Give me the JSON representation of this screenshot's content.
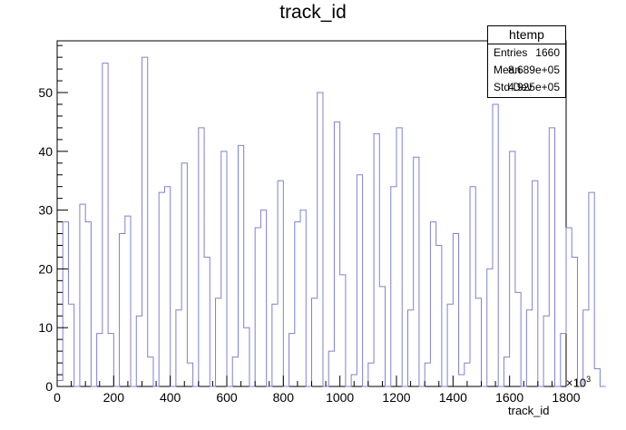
{
  "chart_data": {
    "type": "bar",
    "title": "track_id",
    "xlabel": "track_id",
    "ylabel": "",
    "x_exponent_label": "×10",
    "x_exponent_power": "3",
    "xlim": [
      0,
      1800
    ],
    "ylim": [
      0,
      58.8
    ],
    "bin_width": 20,
    "x_ticks": [
      0,
      200,
      400,
      600,
      800,
      1000,
      1200,
      1400,
      1600,
      1800
    ],
    "y_ticks": [
      0,
      10,
      20,
      30,
      40,
      50
    ],
    "line_color": "#8080d0",
    "values": [
      1,
      28,
      14,
      0,
      31,
      28,
      0,
      9,
      55,
      9,
      0,
      26,
      29,
      0,
      12,
      56,
      5,
      0,
      33,
      34,
      0,
      13,
      38,
      4,
      0,
      44,
      22,
      0,
      15,
      40,
      0,
      5,
      41,
      10,
      0,
      27,
      30,
      0,
      14,
      35,
      0,
      9,
      28,
      30,
      0,
      15,
      50,
      0,
      6,
      45,
      19,
      0,
      2,
      36,
      0,
      4,
      43,
      17,
      0,
      34,
      44,
      0,
      13,
      39,
      0,
      4,
      28,
      24,
      0,
      14,
      26,
      2,
      4,
      34,
      15,
      0,
      20,
      48,
      0,
      5,
      40,
      16,
      0,
      13,
      35,
      0,
      12,
      44,
      0,
      9,
      27,
      22,
      0,
      13,
      33,
      3,
      0
    ]
  },
  "stats_box": {
    "name": "htemp",
    "rows": [
      {
        "label": "Entries",
        "value": "1660"
      },
      {
        "label": "Mean",
        "value": "8.689e+05"
      },
      {
        "label": "Std Dev",
        "value": "4.925e+05"
      }
    ]
  }
}
